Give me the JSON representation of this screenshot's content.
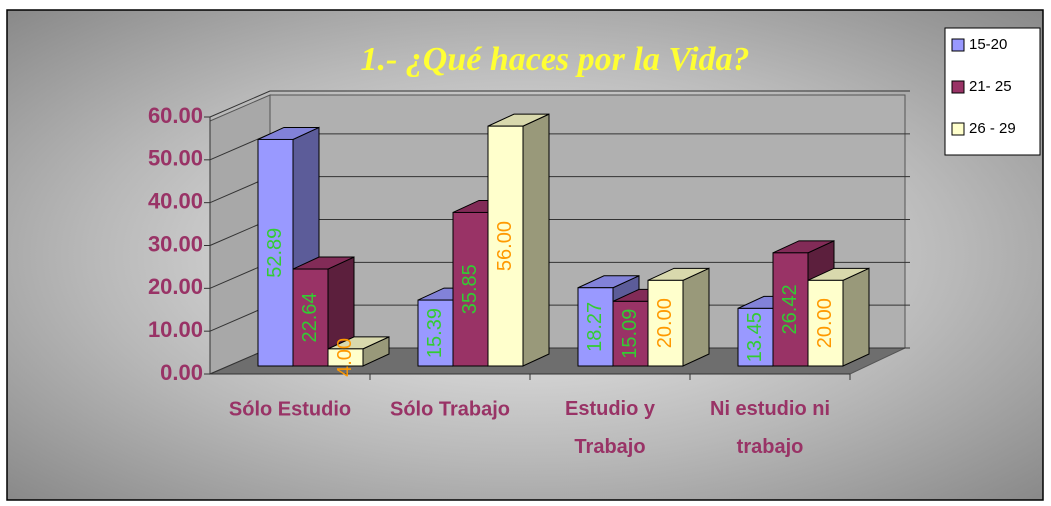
{
  "chart_data": {
    "type": "bar3d",
    "title": "1.- ¿Qué haces por la Vida?",
    "categories": [
      "Sólo Estudio",
      "Sólo Trabajo",
      "Estudio y Trabajo",
      "Ni estudio ni trabajo"
    ],
    "series": [
      {
        "name": "15-20",
        "color": "#9999ff",
        "values": [
          52.89,
          15.39,
          18.27,
          13.45
        ],
        "value_labels": [
          "52.89",
          "15.39",
          "18.27",
          "13.45"
        ],
        "label_color": "#33cc33"
      },
      {
        "name": "21- 25",
        "color": "#993366",
        "values": [
          22.64,
          35.85,
          15.09,
          26.42
        ],
        "value_labels": [
          "22.64",
          "35.85",
          "15.09",
          "26.42"
        ],
        "label_color": "#33cc33"
      },
      {
        "name": "26 - 29",
        "color": "#ffffcc",
        "values": [
          4.0,
          56.0,
          20.0,
          20.0
        ],
        "value_labels": [
          "4.00",
          "56.00",
          "20.00",
          "20.00"
        ],
        "label_color": "#ff9900"
      }
    ],
    "ylim": [
      0,
      60
    ],
    "yticks": [
      {
        "value": 0,
        "label": "0.00"
      },
      {
        "value": 10,
        "label": "10.00"
      },
      {
        "value": 20,
        "label": "20.00"
      },
      {
        "value": 30,
        "label": "30.00"
      },
      {
        "value": 40,
        "label": "40.00"
      },
      {
        "value": 50,
        "label": "50.00"
      },
      {
        "value": 60,
        "label": "60.00"
      }
    ],
    "grid": true,
    "legend": "right"
  }
}
